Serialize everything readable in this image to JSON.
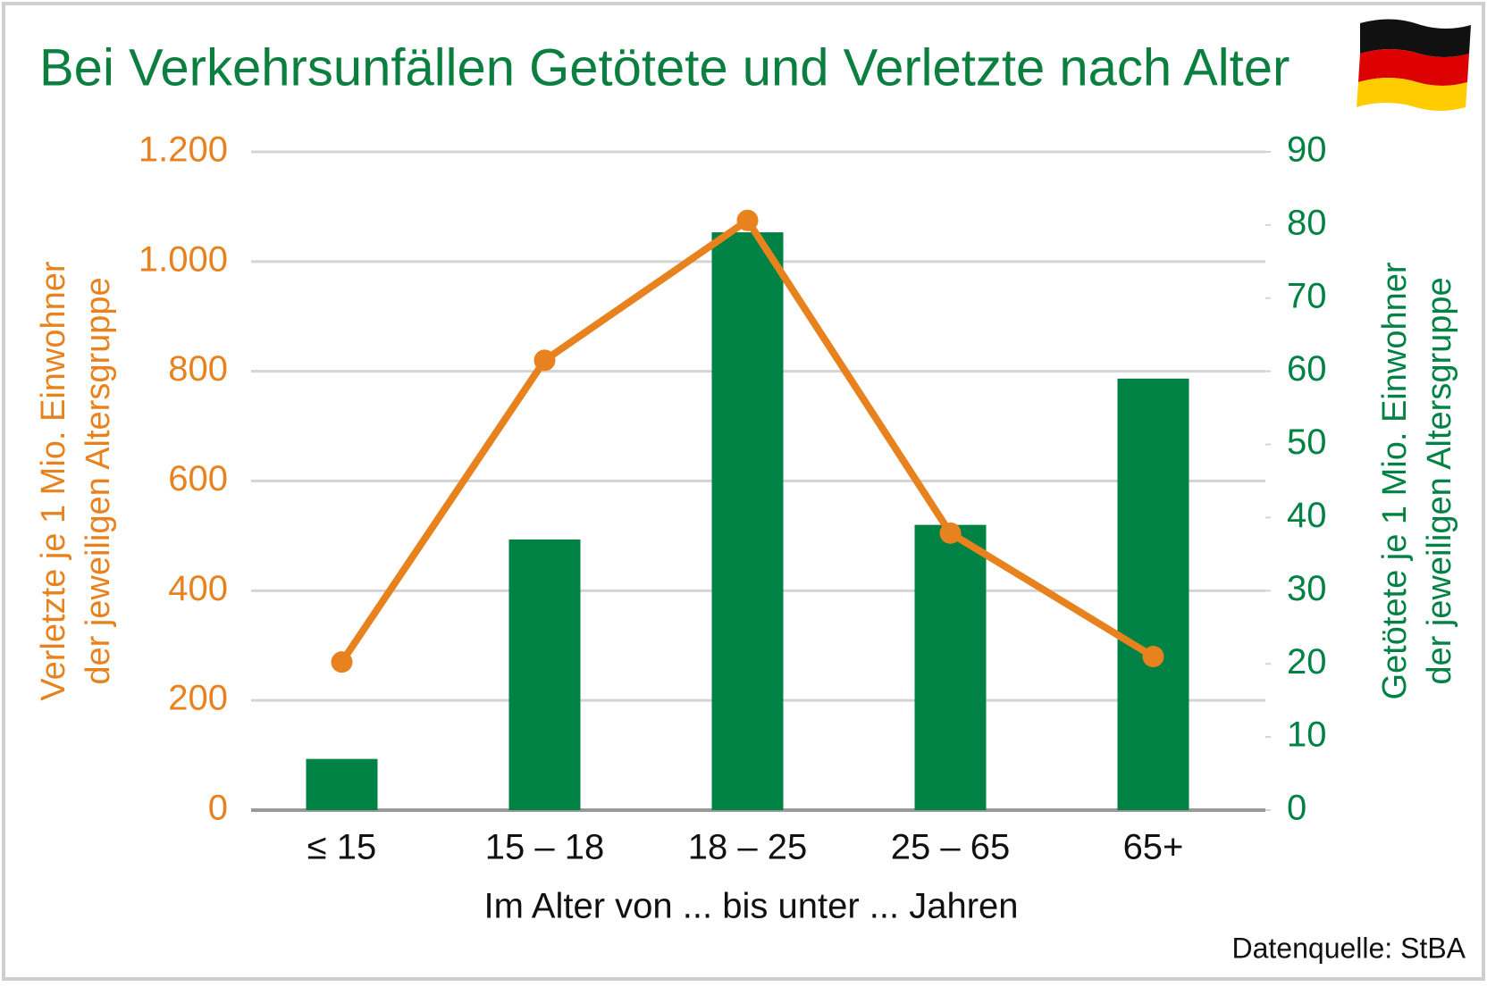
{
  "chart_data": {
    "type": "bar",
    "title": "Bei Verkehrsunfällen Getötete und Verletzte nach Alter",
    "xlabel": "Im Alter von ... bis unter ... Jahren",
    "ylabel": [
      "Verletzte je 1 Mio. Einwohner",
      "der jeweiligen Altersgruppe"
    ],
    "y2label": [
      "Getötete je 1 Mio. Einwohner",
      "der jeweiligen Altersgruppe"
    ],
    "source": "Datenquelle: StBA",
    "categories": [
      "≤ 15",
      "15 – 18",
      "18 – 25",
      "25 – 65",
      "65+"
    ],
    "series": [
      {
        "name": "Getötete",
        "type": "bar",
        "axis": "y2",
        "color": "#008244",
        "values": [
          7,
          37,
          79,
          39,
          59
        ]
      },
      {
        "name": "Verletzte",
        "type": "line",
        "color": "#e8821e",
        "values": [
          270,
          820,
          1075,
          505,
          280
        ]
      }
    ],
    "ylim": [
      0,
      1200
    ],
    "yticks": [
      0,
      200,
      400,
      600,
      800,
      {
        "value": 1000,
        "label": "1.000"
      },
      {
        "value": 1200,
        "label": "1.200"
      }
    ],
    "y2lim": [
      0,
      90
    ],
    "y2ticks": [
      0,
      10,
      20,
      30,
      40,
      50,
      60,
      70,
      80,
      90
    ],
    "grid": true
  }
}
